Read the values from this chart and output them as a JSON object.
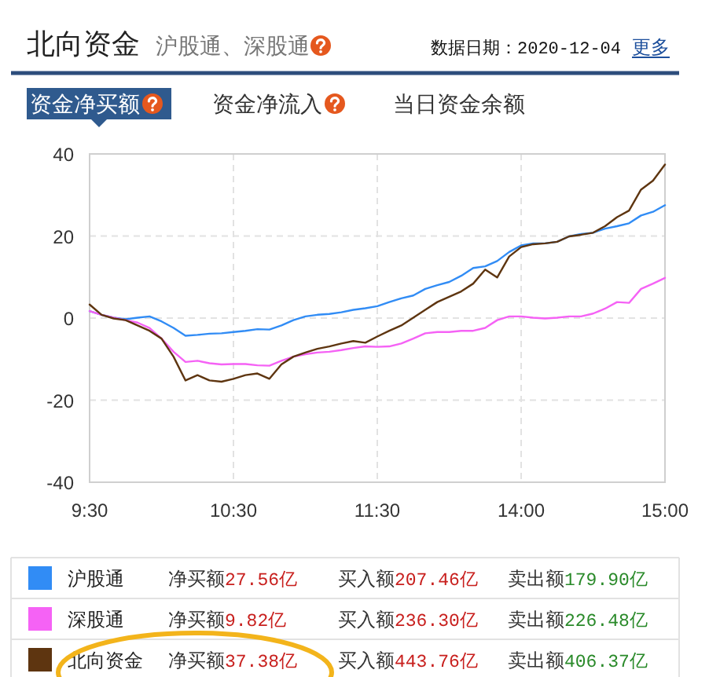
{
  "chart_data": {
    "type": "line",
    "title": "北向资金",
    "subtitle": "沪股通、深股通",
    "annotations": [
      "数据日期：2020-12-04",
      "更多",
      "资金净买额",
      "资金净流入",
      "当日资金余额",
      "净买额",
      "27.56亿",
      "买入额",
      "207.46亿",
      "卖出额",
      "179.90亿",
      "净买额",
      "9.82亿",
      "买入额",
      "236.30亿",
      "卖出额",
      "226.48亿",
      "净买额",
      "37.38亿",
      "买入额",
      "443.76亿",
      "卖出额",
      "406.37亿"
    ],
    "categories": [
      "9:30",
      null,
      null,
      null,
      null,
      null,
      null,
      null,
      null,
      null,
      null,
      null,
      "10:30",
      null,
      null,
      null,
      null,
      null,
      null,
      null,
      null,
      null,
      null,
      null,
      "11:30",
      null,
      null,
      null,
      null,
      null,
      null,
      null,
      null,
      null,
      null,
      null,
      "14:00",
      null,
      null,
      null,
      null,
      null,
      null,
      null,
      null,
      null,
      null,
      null,
      "15:00"
    ],
    "ylim": [
      -40,
      40
    ],
    "yticks": [
      -40,
      -20,
      0,
      20,
      40
    ],
    "grid": true,
    "legend": "bottom",
    "series": [
      {
        "name": "沪股通",
        "color": "#318cf5",
        "values": [
          1.7,
          0.8,
          0.1,
          -0.3,
          0.1,
          0.4,
          -0.8,
          -2.4,
          -4.3,
          -4.1,
          -3.8,
          -3.7,
          -3.4,
          -3.1,
          -2.7,
          -2.8,
          -1.8,
          -0.5,
          0.4,
          0.8,
          1.0,
          1.4,
          2.0,
          2.4,
          2.9,
          3.9,
          4.8,
          5.5,
          7.1,
          8.0,
          8.8,
          10.3,
          12.2,
          12.6,
          13.9,
          16.1,
          17.7,
          18.2,
          18.2,
          18.6,
          19.9,
          20.5,
          20.8,
          21.8,
          22.4,
          23.1,
          25.0,
          25.9,
          27.5
        ]
      },
      {
        "name": "深股通",
        "color": "#f562f5",
        "values": [
          1.7,
          0.8,
          0.1,
          -0.5,
          -1.1,
          -2.4,
          -5.0,
          -8.2,
          -10.7,
          -10.4,
          -11.0,
          -11.3,
          -11.2,
          -11.2,
          -11.5,
          -11.6,
          -10.4,
          -9.4,
          -8.8,
          -8.4,
          -8.2,
          -7.8,
          -7.3,
          -6.9,
          -7.0,
          -6.9,
          -6.2,
          -5.0,
          -3.7,
          -3.4,
          -3.4,
          -3.1,
          -3.1,
          -2.4,
          -0.5,
          0.4,
          0.4,
          0.1,
          -0.1,
          0.1,
          0.4,
          0.4,
          1.1,
          2.3,
          3.9,
          3.7,
          7.1,
          8.4,
          9.8
        ]
      },
      {
        "name": "北向资金",
        "color": "#5e3510",
        "values": [
          3.3,
          0.8,
          -0.1,
          -0.5,
          -1.8,
          -3.1,
          -5.0,
          -9.4,
          -15.2,
          -13.9,
          -15.2,
          -15.5,
          -14.8,
          -13.9,
          -13.5,
          -14.8,
          -11.3,
          -9.4,
          -8.4,
          -7.5,
          -6.9,
          -6.2,
          -5.6,
          -6.0,
          -4.5,
          -3.1,
          -1.8,
          0.1,
          2.0,
          3.9,
          5.2,
          6.5,
          8.4,
          11.8,
          9.9,
          15.0,
          17.3,
          18.0,
          18.2,
          18.6,
          19.9,
          20.3,
          20.8,
          22.4,
          24.6,
          26.2,
          31.3,
          33.5,
          37.4
        ]
      }
    ]
  }
}
